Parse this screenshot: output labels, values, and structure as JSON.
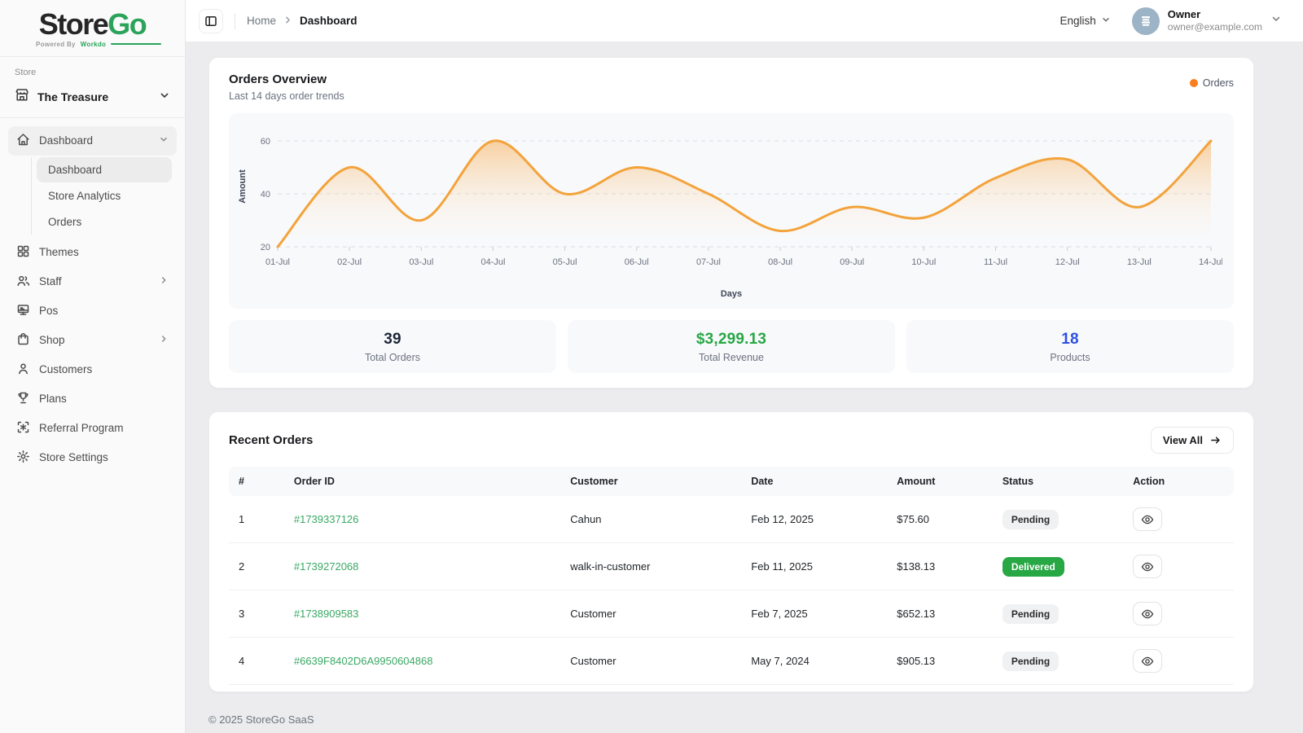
{
  "brand": {
    "name_dark": "Store",
    "name_green": "Go",
    "powered_by": "Powered By",
    "powered_brand": "Workdo",
    "accent_green": "#2ba35a"
  },
  "sidebar": {
    "section_label": "Store",
    "store_name": "The Treasure",
    "items": [
      {
        "label": "Dashboard",
        "icon": "home-icon",
        "expanded": true,
        "children": [
          {
            "label": "Dashboard",
            "active": true
          },
          {
            "label": "Store Analytics"
          },
          {
            "label": "Orders"
          }
        ]
      },
      {
        "label": "Themes",
        "icon": "grid-icon"
      },
      {
        "label": "Staff",
        "icon": "users-icon",
        "has_submenu": true
      },
      {
        "label": "Pos",
        "icon": "pos-icon"
      },
      {
        "label": "Shop",
        "icon": "shop-icon",
        "has_submenu": true
      },
      {
        "label": "Customers",
        "icon": "user-icon"
      },
      {
        "label": "Plans",
        "icon": "trophy-icon"
      },
      {
        "label": "Referral Program",
        "icon": "referral-icon"
      },
      {
        "label": "Store Settings",
        "icon": "gear-icon"
      }
    ]
  },
  "header": {
    "breadcrumb": {
      "home": "Home",
      "current": "Dashboard"
    },
    "language": "English",
    "user": {
      "name": "Owner",
      "email": "owner@example.com"
    }
  },
  "overview": {
    "title": "Orders Overview",
    "subtitle": "Last 14 days order trends",
    "legend_label": "Orders",
    "stats": [
      {
        "value": "39",
        "label": "Total Orders",
        "color": "#1e2738"
      },
      {
        "value": "$3,299.13",
        "label": "Total Revenue",
        "color": "#28a745"
      },
      {
        "value": "18",
        "label": "Products",
        "color": "#2d50e0"
      }
    ]
  },
  "chart_data": {
    "type": "area",
    "title": "Orders Overview",
    "categories": [
      "01-Jul",
      "02-Jul",
      "03-Jul",
      "04-Jul",
      "05-Jul",
      "06-Jul",
      "07-Jul",
      "08-Jul",
      "09-Jul",
      "10-Jul",
      "11-Jul",
      "12-Jul",
      "13-Jul",
      "14-Jul"
    ],
    "series": [
      {
        "name": "Orders",
        "values": [
          20,
          50,
          30,
          60,
          40,
          50,
          40,
          26,
          35,
          31,
          46,
          53,
          35,
          60
        ]
      }
    ],
    "xlabel": "Days",
    "ylabel": "Amount",
    "ylim": [
      20,
      60
    ],
    "yticks": [
      20,
      40,
      60
    ],
    "grid": "dashed-horizontal",
    "legend_position": "top-right",
    "line_color": "#f3a33b",
    "legend_dot_color": "#fb7d1d",
    "fill_top": "rgba(246,173,85,0.55)",
    "fill_bottom": "rgba(255,255,255,0.04)"
  },
  "recent_orders": {
    "title": "Recent Orders",
    "view_all": "View All",
    "columns": [
      "#",
      "Order ID",
      "Customer",
      "Date",
      "Amount",
      "Status",
      "Action"
    ],
    "rows": [
      {
        "num": "1",
        "order_id": "#1739337126",
        "customer": "Cahun",
        "date": "Feb 12, 2025",
        "amount": "$75.60",
        "status": "Pending",
        "status_type": "pending"
      },
      {
        "num": "2",
        "order_id": "#1739272068",
        "customer": "walk-in-customer",
        "date": "Feb 11, 2025",
        "amount": "$138.13",
        "status": "Delivered",
        "status_type": "delivered"
      },
      {
        "num": "3",
        "order_id": "#1738909583",
        "customer": "Customer",
        "date": "Feb 7, 2025",
        "amount": "$652.13",
        "status": "Pending",
        "status_type": "pending"
      },
      {
        "num": "4",
        "order_id": "#6639F8402D6A9950604868",
        "customer": "Customer",
        "date": "May 7, 2024",
        "amount": "$905.13",
        "status": "Pending",
        "status_type": "pending"
      }
    ]
  },
  "footer": {
    "copyright": "© 2025 StoreGo SaaS"
  }
}
